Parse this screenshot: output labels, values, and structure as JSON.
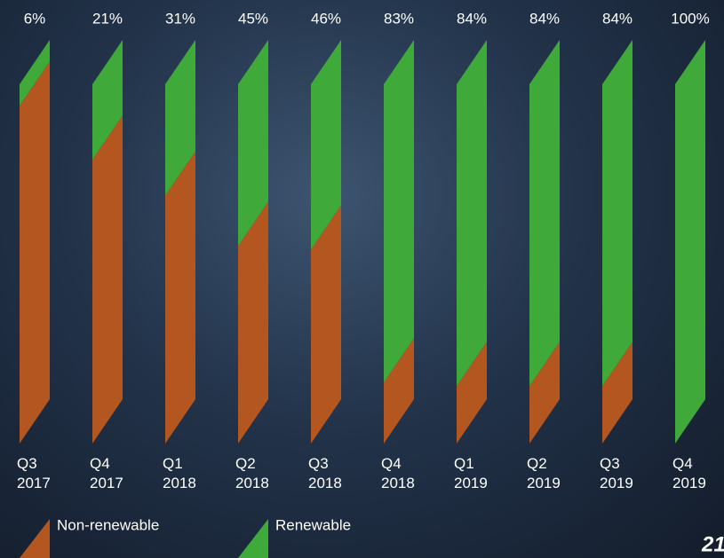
{
  "chart_data": {
    "type": "slanted_stacked_bar",
    "categories": [
      "Q3 2017",
      "Q4 2017",
      "Q1 2018",
      "Q2 2018",
      "Q3 2018",
      "Q4 2018",
      "Q1 2019",
      "Q2 2019",
      "Q3 2019",
      "Q4 2019"
    ],
    "series": [
      {
        "name": "Non-renewable",
        "color": "#b4561f",
        "values": [
          94,
          79,
          69,
          55,
          54,
          17,
          16,
          16,
          16,
          0
        ]
      },
      {
        "name": "Renewable",
        "color": "#3fa93a",
        "values": [
          6,
          21,
          31,
          45,
          46,
          83,
          84,
          84,
          84,
          100
        ],
        "value_labels": [
          "6%",
          "21%",
          "31%",
          "45%",
          "46%",
          "83%",
          "84%",
          "84%",
          "84%",
          "100%"
        ]
      }
    ],
    "ylim": [
      0,
      100
    ]
  },
  "page_number": "21"
}
